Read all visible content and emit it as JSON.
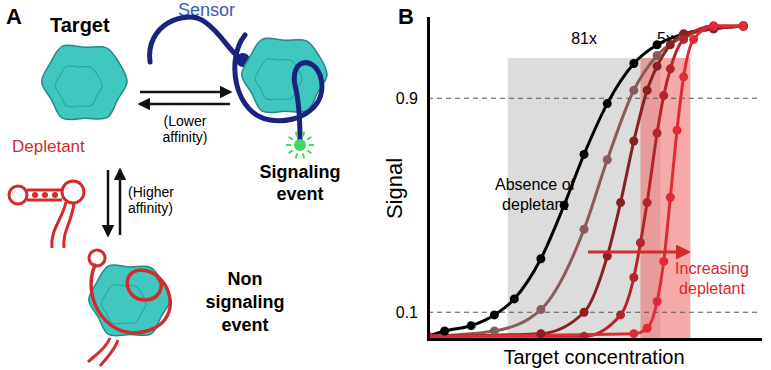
{
  "panel_labels": [
    "A",
    "B"
  ],
  "diagram": {
    "target": "Target",
    "sensor": "Sensor",
    "depletant": "Depletant",
    "lower_affinity": [
      "(Lower",
      "affinity)"
    ],
    "higher_affinity": [
      "(Higher",
      "affinity)"
    ],
    "signaling_event": [
      "Signaling",
      "event"
    ],
    "non_signaling_event": [
      "Non",
      "signaling",
      "event"
    ]
  },
  "chart_data": {
    "type": "line",
    "x_label": "Target concentration",
    "y_label": "Signal",
    "xlim": [
      0,
      100
    ],
    "ylim": [
      0,
      1.2
    ],
    "yticks": [
      0.1,
      0.9
    ],
    "grid": true,
    "tick_labels": "y",
    "marker": "circle",
    "series": [
      {
        "color": "#000000",
        "x": [
          0,
          5,
          13,
          20,
          26,
          34,
          41,
          47,
          54,
          62,
          69,
          77,
          86,
          95
        ],
        "values": [
          0.01,
          0.03,
          0.05,
          0.09,
          0.15,
          0.3,
          0.5,
          0.69,
          0.88,
          1.03,
          1.1,
          1.14,
          1.16,
          1.17
        ]
      },
      {
        "color": "#8c5a5a",
        "x": [
          0,
          20,
          34,
          47,
          54,
          62,
          69,
          77,
          86,
          95
        ],
        "values": [
          0.01,
          0.03,
          0.11,
          0.41,
          0.67,
          0.93,
          1.06,
          1.13,
          1.16,
          1.17
        ]
      },
      {
        "color": "#8b2020",
        "x": [
          0,
          34,
          47,
          54,
          58,
          62,
          66,
          69,
          73,
          77,
          86,
          95
        ],
        "values": [
          0.01,
          0.02,
          0.1,
          0.31,
          0.51,
          0.74,
          0.93,
          1.02,
          1.1,
          1.14,
          1.16,
          1.17
        ]
      },
      {
        "color": "#b3242b",
        "x": [
          0,
          47,
          58,
          62,
          64,
          66,
          69,
          71,
          73,
          77,
          86,
          95
        ],
        "values": [
          0.01,
          0.01,
          0.09,
          0.23,
          0.36,
          0.51,
          0.77,
          0.91,
          1.01,
          1.12,
          1.17,
          1.17
        ]
      },
      {
        "color": "#e02a35",
        "x": [
          0,
          62,
          66,
          69,
          71,
          73,
          75,
          77,
          80,
          86,
          95
        ],
        "values": [
          0.01,
          0.02,
          0.04,
          0.14,
          0.29,
          0.53,
          0.78,
          0.98,
          1.12,
          1.17,
          1.17
        ]
      }
    ],
    "bands": [
      {
        "x": [
          24,
          70
        ],
        "label": "81x",
        "color": "#c4c4c4"
      },
      {
        "x": [
          64,
          79
        ],
        "label": "5x",
        "color": "#ef7070"
      }
    ],
    "annotations": [
      {
        "text": [
          "Absence of",
          "depletant"
        ]
      },
      {
        "text": [
          "Increasing",
          "depletant"
        ],
        "color": "#d22b2b"
      }
    ]
  }
}
